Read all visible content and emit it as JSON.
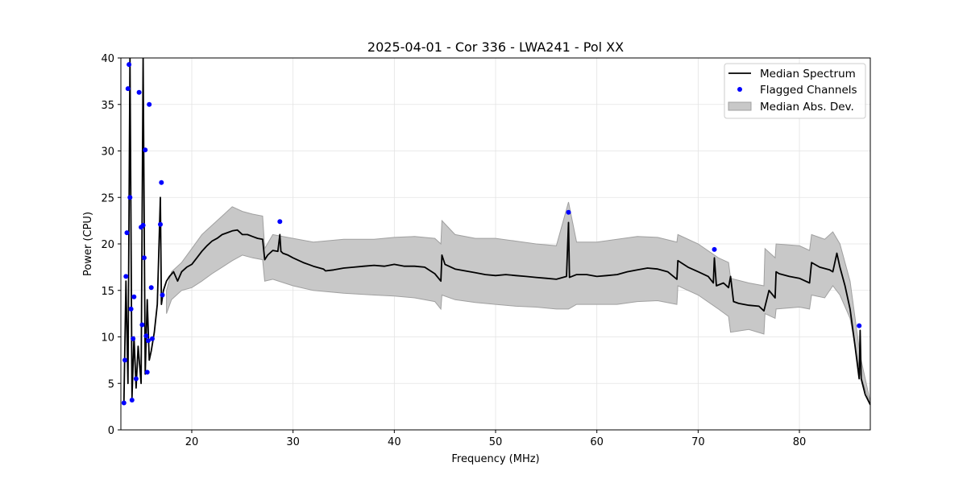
{
  "chart_data": {
    "type": "line",
    "title": "2025-04-01 - Cor 336 - LWA241 - Pol XX",
    "xlabel": "Frequency (MHz)",
    "ylabel": "Power (CPU)",
    "xlim": [
      13.0,
      87.0
    ],
    "ylim": [
      0,
      40
    ],
    "xticks": [
      20,
      30,
      40,
      50,
      60,
      70,
      80
    ],
    "yticks": [
      0,
      5,
      10,
      15,
      20,
      25,
      30,
      35,
      40
    ],
    "grid": true,
    "legend_position": "top-right",
    "colors": {
      "median": "#000000",
      "flagged": "#0000ff",
      "band_fill": "#c8c8c8",
      "band_edge": "#a0a0a0",
      "grid": "#e3e3e3"
    },
    "series": [
      {
        "name": "Median Spectrum",
        "kind": "line",
        "x": [
          13.3,
          13.5,
          13.7,
          13.9,
          14.1,
          14.3,
          14.5,
          14.7,
          15.0,
          15.2,
          15.4,
          15.6,
          15.8,
          16.0,
          16.3,
          16.6,
          16.9,
          17.0,
          17.2,
          17.5,
          17.8,
          18.2,
          18.6,
          19.0,
          19.5,
          20.0,
          20.5,
          21.0,
          21.5,
          22.0,
          22.5,
          23.0,
          23.5,
          24.0,
          24.5,
          25.0,
          25.5,
          26.0,
          26.5,
          27.0,
          27.2,
          27.5,
          28.0,
          28.5,
          28.7,
          28.8,
          29.0,
          29.5,
          30.0,
          31.0,
          32.0,
          33.0,
          33.2,
          34.0,
          35.0,
          36.0,
          37.0,
          38.0,
          39.0,
          40.0,
          41.0,
          42.0,
          43.0,
          44.0,
          44.6,
          44.7,
          45.0,
          46.0,
          47.0,
          48.0,
          49.0,
          50.0,
          51.0,
          52.0,
          53.0,
          54.0,
          55.0,
          56.0,
          57.0,
          57.2,
          57.3,
          58.0,
          59.0,
          60.0,
          61.0,
          62.0,
          63.0,
          64.0,
          65.0,
          66.0,
          67.0,
          67.9,
          68.0,
          69.0,
          70.0,
          71.0,
          71.5,
          71.6,
          71.8,
          72.5,
          73.0,
          73.2,
          73.5,
          74.0,
          75.0,
          76.0,
          76.5,
          77.0,
          77.6,
          77.7,
          78.0,
          79.0,
          80.0,
          81.0,
          81.2,
          82.0,
          83.0,
          83.3,
          83.7,
          84.0,
          84.5,
          85.0,
          85.5,
          85.9,
          86.0,
          86.1,
          86.5,
          87.0
        ],
        "y": [
          3.0,
          16.0,
          5.0,
          40.0,
          3.5,
          10.0,
          4.5,
          9.0,
          5.0,
          40.0,
          6.0,
          14.0,
          7.5,
          8.5,
          10.5,
          13.5,
          25.0,
          13.5,
          15.0,
          16.0,
          16.5,
          17.0,
          16.0,
          17.0,
          17.5,
          17.8,
          18.5,
          19.2,
          19.8,
          20.3,
          20.6,
          21.0,
          21.2,
          21.4,
          21.5,
          21.0,
          21.0,
          20.8,
          20.6,
          20.5,
          18.3,
          18.8,
          19.3,
          19.2,
          21.0,
          19.2,
          19.0,
          18.8,
          18.5,
          18.0,
          17.6,
          17.3,
          17.1,
          17.2,
          17.4,
          17.5,
          17.6,
          17.7,
          17.6,
          17.8,
          17.6,
          17.6,
          17.5,
          16.8,
          16.0,
          18.8,
          17.8,
          17.3,
          17.1,
          16.9,
          16.7,
          16.6,
          16.7,
          16.6,
          16.5,
          16.4,
          16.3,
          16.2,
          16.5,
          22.3,
          16.4,
          16.7,
          16.7,
          16.5,
          16.6,
          16.7,
          17.0,
          17.2,
          17.4,
          17.3,
          17.0,
          16.2,
          18.2,
          17.5,
          17.0,
          16.5,
          15.8,
          18.5,
          15.5,
          15.8,
          15.3,
          16.5,
          13.8,
          13.6,
          13.4,
          13.3,
          12.8,
          15.0,
          14.2,
          17.0,
          16.8,
          16.5,
          16.3,
          15.8,
          18.0,
          17.5,
          17.2,
          17.0,
          19.0,
          17.5,
          15.5,
          13.0,
          9.0,
          5.5,
          10.7,
          5.5,
          3.8,
          2.7
        ]
      },
      {
        "name": "Flagged Channels",
        "kind": "scatter",
        "x": [
          13.3,
          13.4,
          13.5,
          13.6,
          13.7,
          13.8,
          13.9,
          14.0,
          14.1,
          14.2,
          14.3,
          14.5,
          14.8,
          15.0,
          15.1,
          15.2,
          15.3,
          15.4,
          15.5,
          15.6,
          15.7,
          15.8,
          16.0,
          16.1,
          16.9,
          17.0,
          17.1,
          28.7,
          57.2,
          71.6,
          85.9
        ],
        "y": [
          2.9,
          7.5,
          16.5,
          21.2,
          36.7,
          39.3,
          25.0,
          13.0,
          3.2,
          9.8,
          14.3,
          5.5,
          36.3,
          21.8,
          11.3,
          22.0,
          18.5,
          30.1,
          10.1,
          6.2,
          9.6,
          35.0,
          15.3,
          9.8,
          22.1,
          26.6,
          14.5,
          22.4,
          23.4,
          19.4,
          11.2
        ]
      },
      {
        "name": "Median Abs. Dev.",
        "kind": "band",
        "x": [
          17.5,
          18.0,
          19.0,
          20.0,
          21.0,
          22.0,
          23.0,
          24.0,
          25.0,
          26.0,
          27.0,
          27.2,
          28.0,
          30.0,
          32.0,
          35.0,
          38.0,
          40.0,
          42.0,
          44.0,
          44.6,
          44.7,
          46.0,
          48.0,
          50.0,
          52.0,
          54.0,
          56.0,
          57.2,
          58.0,
          60.0,
          62.0,
          64.0,
          66.0,
          67.9,
          68.0,
          70.0,
          72.0,
          73.0,
          73.2,
          75.0,
          76.5,
          76.6,
          77.6,
          77.7,
          80.0,
          81.0,
          81.2,
          82.5,
          83.3,
          84.0,
          85.0,
          86.0,
          87.0
        ],
        "lower": [
          12.5,
          14.0,
          15.0,
          15.3,
          16.0,
          16.8,
          17.5,
          18.2,
          18.8,
          18.5,
          18.3,
          16.0,
          16.2,
          15.5,
          15.0,
          14.7,
          14.5,
          14.4,
          14.2,
          13.8,
          13.0,
          14.5,
          14.0,
          13.7,
          13.5,
          13.3,
          13.2,
          13.0,
          13.0,
          13.5,
          13.5,
          13.5,
          13.8,
          13.9,
          13.5,
          15.5,
          14.5,
          13.0,
          12.2,
          10.5,
          10.8,
          10.3,
          12.5,
          12.0,
          13.0,
          13.2,
          13.0,
          14.5,
          14.2,
          15.5,
          14.5,
          12.0,
          6.0,
          2.7
        ],
        "upper": [
          15.0,
          17.0,
          18.0,
          19.5,
          21.0,
          22.0,
          23.0,
          24.0,
          23.5,
          23.2,
          23.0,
          19.5,
          21.0,
          20.6,
          20.2,
          20.5,
          20.5,
          20.7,
          20.8,
          20.6,
          20.0,
          22.5,
          21.0,
          20.6,
          20.6,
          20.3,
          20.0,
          19.8,
          24.5,
          20.2,
          20.2,
          20.5,
          20.8,
          20.7,
          20.2,
          21.0,
          20.0,
          18.5,
          18.0,
          16.3,
          15.8,
          15.5,
          19.5,
          18.5,
          20.0,
          19.8,
          19.3,
          21.0,
          20.5,
          21.3,
          20.0,
          16.0,
          8.0,
          3.0
        ]
      }
    ]
  }
}
